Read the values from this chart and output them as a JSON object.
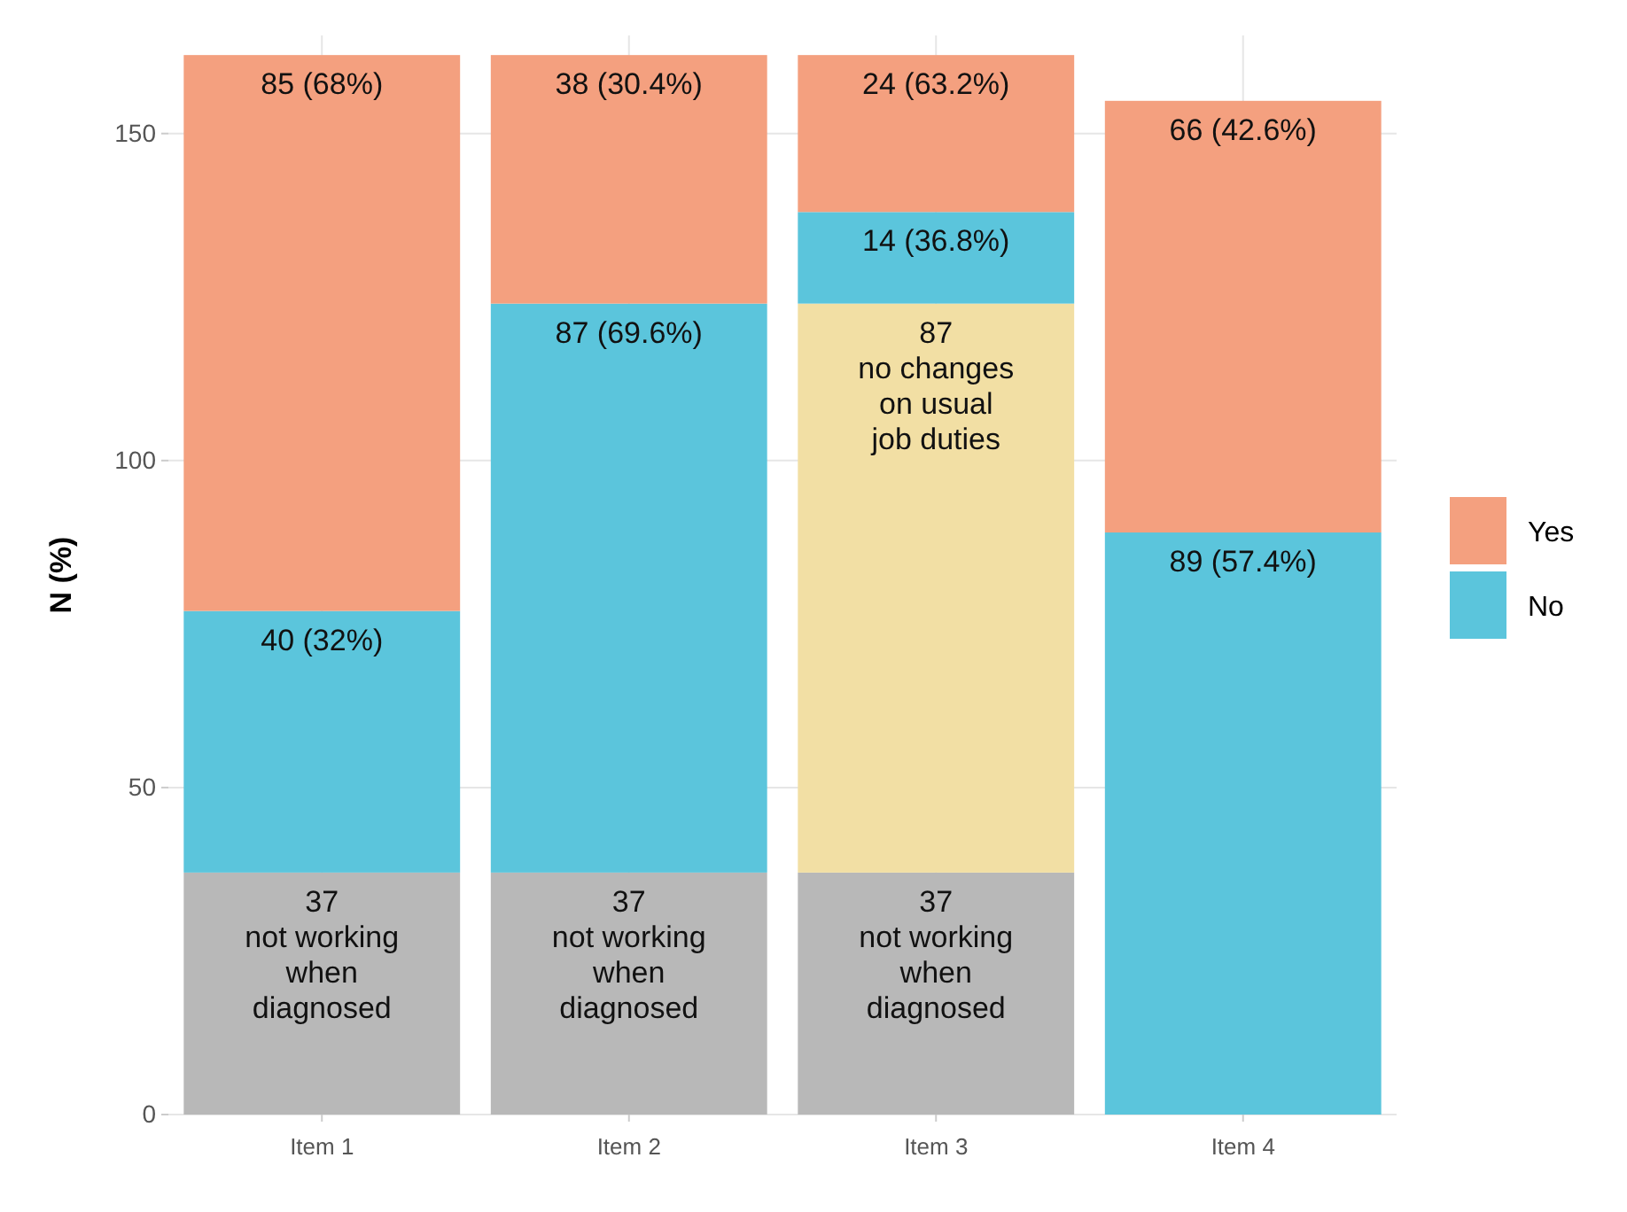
{
  "chart_data": {
    "type": "bar",
    "stacked": true,
    "ylabel": "N (%)",
    "categories": [
      "Item 1",
      "Item 2",
      "Item 3",
      "Item 4"
    ],
    "ylim": [
      0,
      165
    ],
    "yticks": [
      0,
      50,
      100,
      150
    ],
    "grid": true,
    "legend": "right",
    "series": [
      {
        "color": "#b8b8b8",
        "values": [
          37,
          37,
          37,
          null
        ],
        "value_labels": [
          "37\nnot working\nwhen\ndiagnosed",
          "37\nnot working\nwhen\ndiagnosed",
          "37\nnot working\nwhen\ndiagnosed",
          null
        ]
      },
      {
        "color": "#f2dfa4",
        "values": [
          null,
          null,
          87,
          null
        ],
        "value_labels": [
          null,
          null,
          "87\nno changes\non usual\njob duties",
          null
        ]
      },
      {
        "name": "No",
        "color": "#5bc5dc",
        "values": [
          40,
          87,
          14,
          89
        ],
        "value_labels": [
          "40 (32%)",
          "87 (69.6%)",
          "14 (36.8%)",
          "89 (57.4%)"
        ]
      },
      {
        "name": "Yes",
        "color": "#f4a07f",
        "values": [
          85,
          38,
          24,
          66
        ],
        "value_labels": [
          "85 (68%)",
          "38 (30.4%)",
          "24 (63.2%)",
          "66 (42.6%)"
        ]
      }
    ]
  }
}
